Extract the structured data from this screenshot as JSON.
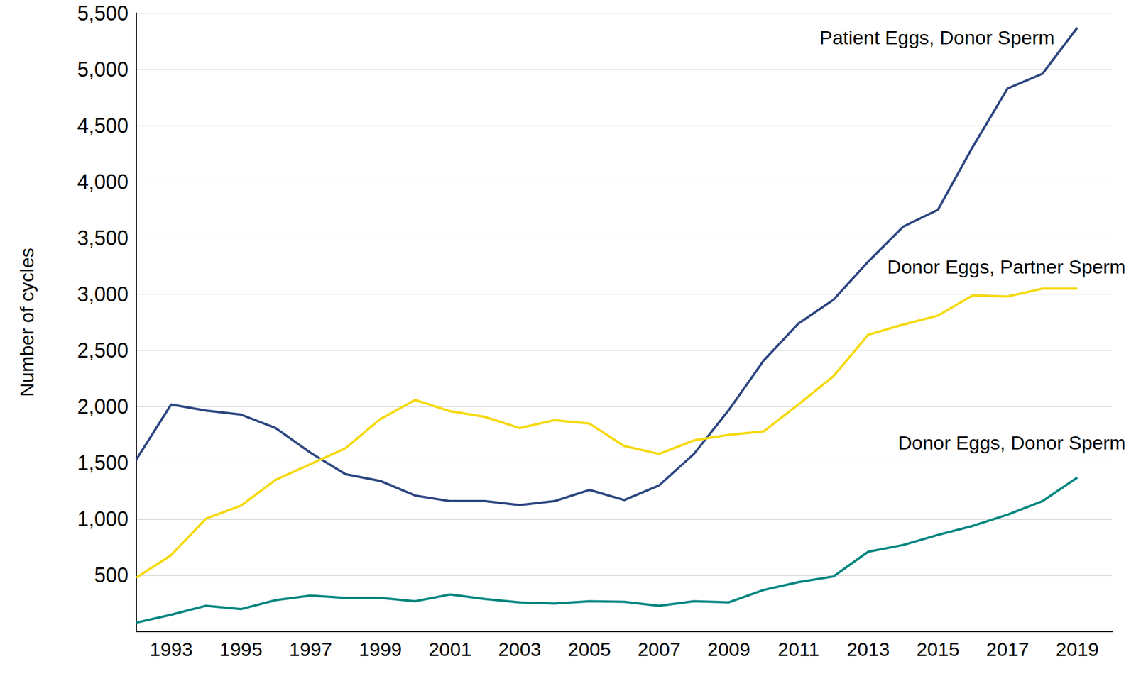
{
  "chart_data": {
    "type": "line",
    "y_label": "Number of cycles",
    "x": [
      1992,
      1993,
      1994,
      1995,
      1996,
      1997,
      1998,
      1999,
      2000,
      2001,
      2002,
      2003,
      2004,
      2005,
      2006,
      2007,
      2008,
      2009,
      2010,
      2011,
      2012,
      2013,
      2014,
      2015,
      2016,
      2017,
      2018,
      2019
    ],
    "series": [
      {
        "name": "Patient Eggs, Donor Sperm",
        "color": "#2b4580",
        "values": [
          1530,
          2020,
          1965,
          1930,
          1810,
          1590,
          1400,
          1340,
          1210,
          1160,
          1160,
          1125,
          1160,
          1260,
          1170,
          1300,
          1580,
          1970,
          2410,
          2740,
          2950,
          3290,
          3600,
          3750,
          4310,
          4830,
          4960,
          5370
        ]
      },
      {
        "name": "Donor Eggs, Partner Sperm",
        "color": "#f5d90a",
        "values": [
          480,
          680,
          1005,
          1120,
          1350,
          1490,
          1630,
          1890,
          2060,
          1960,
          1910,
          1810,
          1880,
          1850,
          1650,
          1580,
          1700,
          1750,
          1780,
          2020,
          2270,
          2640,
          2730,
          2810,
          2990,
          2980,
          3050,
          3050
        ]
      },
      {
        "name": "Donor Eggs, Donor Sperm",
        "color": "#00857f",
        "values": [
          80,
          150,
          230,
          200,
          280,
          320,
          300,
          300,
          270,
          330,
          290,
          260,
          250,
          270,
          265,
          230,
          270,
          260,
          370,
          440,
          490,
          710,
          770,
          860,
          940,
          1040,
          1160,
          1370
        ]
      }
    ],
    "xlim": [
      1992,
      2020
    ],
    "xticks": [
      1993,
      1995,
      1997,
      1999,
      2001,
      2003,
      2005,
      2007,
      2009,
      2011,
      2013,
      2015,
      2017,
      2019
    ],
    "ylim": [
      0,
      5500
    ],
    "yticks": [
      500,
      {
        "value": 1000,
        "label": "1,000"
      },
      {
        "value": 1500,
        "label": "1,500"
      },
      {
        "value": 2000,
        "label": "2,000"
      },
      {
        "value": 2500,
        "label": "2,500"
      },
      {
        "value": 3000,
        "label": "3,000"
      },
      {
        "value": 3500,
        "label": "3,500"
      },
      {
        "value": 4000,
        "label": "4,000"
      },
      {
        "value": 4500,
        "label": "4,500"
      },
      {
        "value": 5000,
        "label": "5,000"
      },
      {
        "value": 5500,
        "label": "5,500"
      }
    ],
    "grid": true
  }
}
